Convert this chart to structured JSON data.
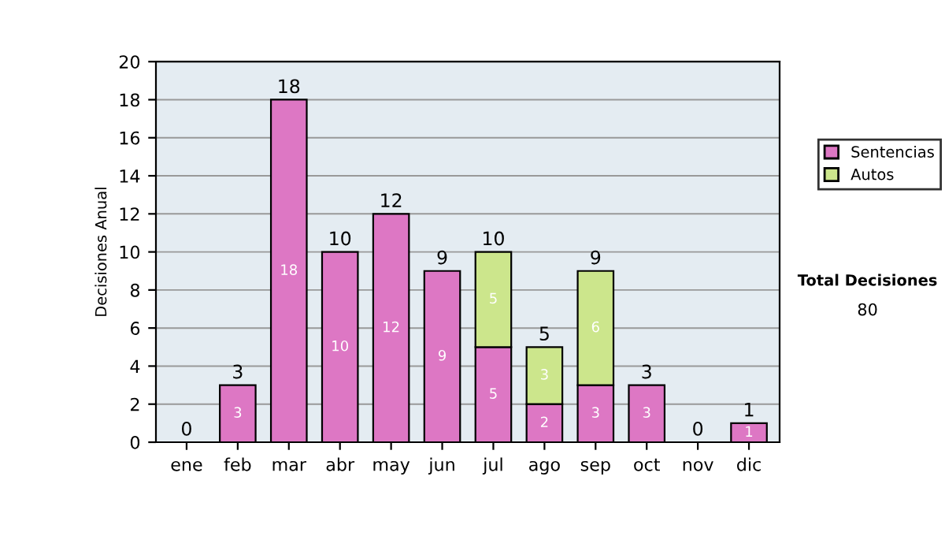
{
  "chart_data": {
    "type": "bar",
    "stacked": true,
    "ylabel": "Decisiones Anual",
    "categories": [
      "ene",
      "feb",
      "mar",
      "abr",
      "may",
      "jun",
      "jul",
      "ago",
      "sep",
      "oct",
      "nov",
      "dic"
    ],
    "series": [
      {
        "name": "Sentencias",
        "color": "#dd77c4",
        "values": [
          0,
          3,
          18,
          10,
          12,
          9,
          5,
          2,
          3,
          3,
          0,
          1
        ],
        "value_labels": [
          null,
          "3",
          "18",
          "10",
          "12",
          "9",
          "5",
          "2",
          "3",
          "3",
          null,
          "1"
        ]
      },
      {
        "name": "Autos",
        "color": "#cce68c",
        "values": [
          0,
          0,
          0,
          0,
          0,
          0,
          5,
          3,
          6,
          0,
          0,
          0
        ],
        "value_labels": [
          null,
          null,
          null,
          null,
          null,
          null,
          "5",
          "3",
          "6",
          null,
          null,
          null
        ]
      }
    ],
    "totals": [
      "0",
      "3",
      "18",
      "10",
      "12",
      "9",
      "10",
      "5",
      "9",
      "3",
      "0",
      "1"
    ],
    "ylim": [
      0,
      20
    ],
    "yticks": [
      0,
      2,
      4,
      6,
      8,
      10,
      12,
      14,
      16,
      18,
      20
    ],
    "grid": "y",
    "legend": "right",
    "annotations": [
      "Total Decisiones",
      "80"
    ]
  }
}
